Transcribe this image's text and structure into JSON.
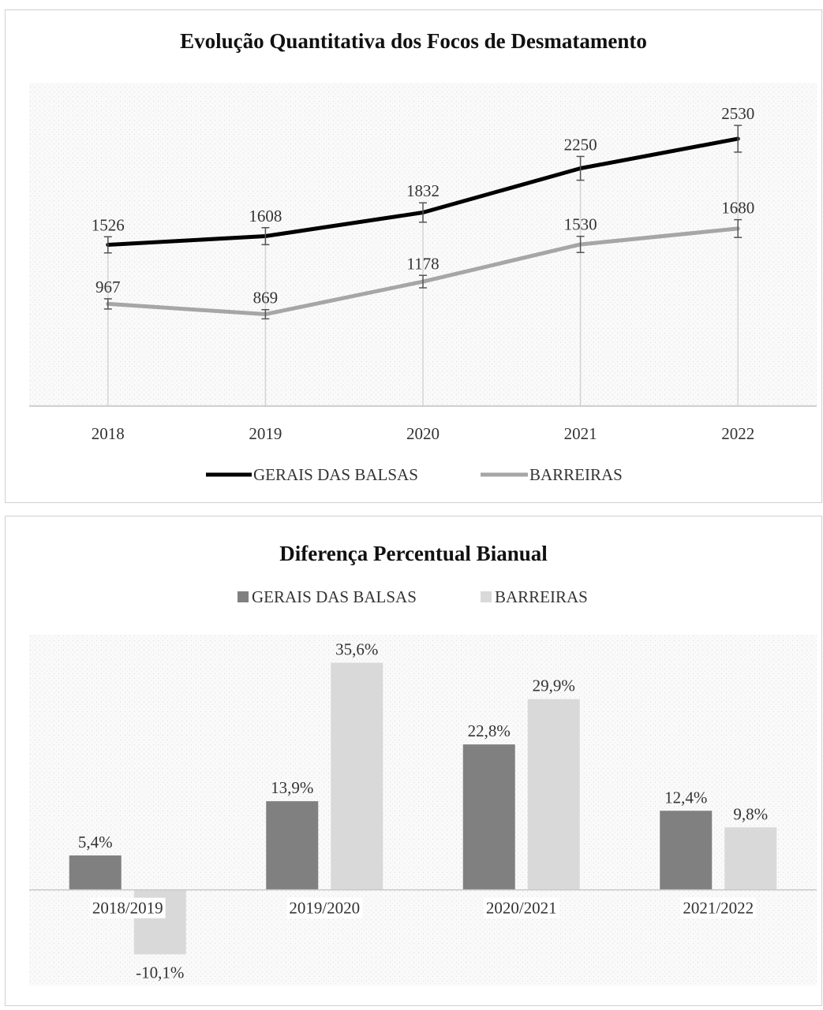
{
  "chart_data": [
    {
      "type": "line",
      "title": "Evolução Quantitativa dos Focos de Desmatamento",
      "categories": [
        "2018",
        "2019",
        "2020",
        "2021",
        "2022"
      ],
      "series": [
        {
          "name": "GERAIS DAS BALSAS",
          "values": [
            1526,
            1608,
            1832,
            2250,
            2530
          ],
          "labels": [
            "1526",
            "1608",
            "1832",
            "2250",
            "2530"
          ],
          "color": "#000000"
        },
        {
          "name": "BARREIRAS",
          "values": [
            967,
            869,
            1178,
            1530,
            1680
          ],
          "labels": [
            "967",
            "869",
            "1178",
            "1530",
            "1680"
          ],
          "color": "#a6a6a6"
        }
      ],
      "error_bars": true,
      "ylim": [
        0,
        3000
      ],
      "legend_position": "bottom",
      "grid": false
    },
    {
      "type": "bar",
      "title": "Diferença Percentual Bianual",
      "categories": [
        "2018/2019",
        "2019/2020",
        "2020/2021",
        "2021/2022"
      ],
      "series": [
        {
          "name": "GERAIS DAS BALSAS",
          "values": [
            5.4,
            13.9,
            22.8,
            12.4
          ],
          "labels": [
            "5,4%",
            "13,9%",
            "22,8%",
            "12,4%"
          ],
          "color": "#808080"
        },
        {
          "name": "BARREIRAS",
          "values": [
            -10.1,
            35.6,
            29.9,
            9.8
          ],
          "labels": [
            "-10,1%",
            "35,6%",
            "29,9%",
            "9,8%"
          ],
          "color": "#d9d9d9"
        }
      ],
      "ylim": [
        -15,
        40
      ],
      "legend_position": "top",
      "grid": false
    }
  ]
}
